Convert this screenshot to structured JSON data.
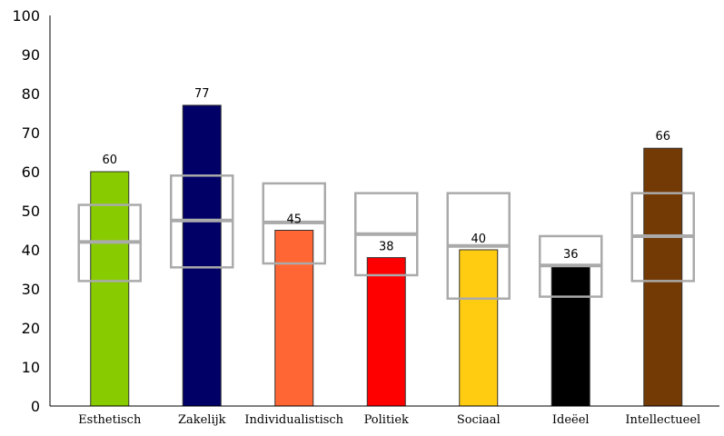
{
  "chart_data": {
    "type": "bar",
    "title": "",
    "xlabel": "",
    "ylabel": "",
    "ylim": [
      0,
      100
    ],
    "yticks": [
      0,
      10,
      20,
      30,
      40,
      50,
      60,
      70,
      80,
      90,
      100
    ],
    "categories": [
      "Esthetisch",
      "Zakelijk",
      "Individualistisch",
      "Politiek",
      "Sociaal",
      "Ideëel",
      "Intellectueel"
    ],
    "values": [
      60,
      77,
      45,
      38,
      40,
      36,
      66
    ],
    "value_labels": [
      "60",
      "77",
      "45",
      "38",
      "40",
      "36",
      "66"
    ],
    "bar_colors": [
      "#88cc00",
      "#000066",
      "#ff6633",
      "#ff0000",
      "#ffcc11",
      "#000000",
      "#733a06"
    ],
    "reference_ranges": [
      {
        "low": 32,
        "mid": 42,
        "high": 51.5
      },
      {
        "low": 35.5,
        "mid": 47.5,
        "high": 59
      },
      {
        "low": 36.5,
        "mid": 47,
        "high": 57
      },
      {
        "low": 33.5,
        "mid": 44,
        "high": 54.5
      },
      {
        "low": 27.5,
        "mid": 41,
        "high": 54.5
      },
      {
        "low": 28,
        "mid": 36,
        "high": 43.5
      },
      {
        "low": 32,
        "mid": 43.5,
        "high": 54.5
      }
    ],
    "reference_color": "#aaaaaa",
    "grid": false,
    "legend": "none"
  }
}
